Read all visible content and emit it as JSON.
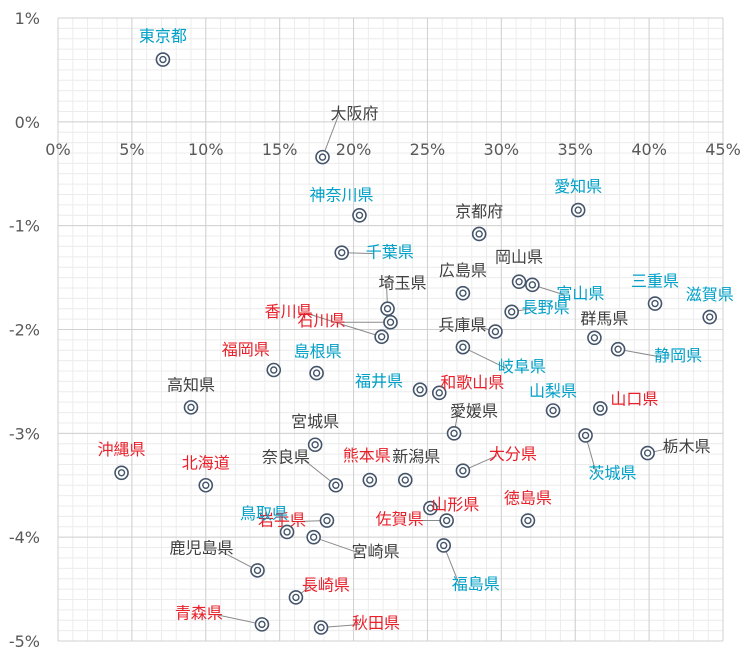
{
  "chart_data": {
    "type": "scatter",
    "title": "",
    "xlabel": "",
    "ylabel": "",
    "xlim": [
      0,
      0.45
    ],
    "ylim": [
      -0.05,
      0.01
    ],
    "x_ticks": [
      {
        "value": 0.0,
        "label": "0%"
      },
      {
        "value": 0.05,
        "label": "5%"
      },
      {
        "value": 0.1,
        "label": "10%"
      },
      {
        "value": 0.15,
        "label": "15%"
      },
      {
        "value": 0.2,
        "label": "20%"
      },
      {
        "value": 0.25,
        "label": "25%"
      },
      {
        "value": 0.3,
        "label": "30%"
      },
      {
        "value": 0.35,
        "label": "35%"
      },
      {
        "value": 0.4,
        "label": "40%"
      },
      {
        "value": 0.45,
        "label": "45%"
      }
    ],
    "y_ticks": [
      {
        "value": 0.01,
        "label": "1%"
      },
      {
        "value": 0.0,
        "label": "0%"
      },
      {
        "value": -0.01,
        "label": "-1%"
      },
      {
        "value": -0.02,
        "label": "-2%"
      },
      {
        "value": -0.03,
        "label": "-3%"
      },
      {
        "value": -0.04,
        "label": "-4%"
      },
      {
        "value": -0.05,
        "label": "-5%"
      }
    ],
    "grid": true,
    "marker_color": "#44546a",
    "label_colors": {
      "cyan": "#00a0c8",
      "red": "#e8202a",
      "dark": "#404040"
    },
    "points": [
      {
        "name": "東京都",
        "x": 0.071,
        "y": 0.006,
        "color": "cyan"
      },
      {
        "name": "大阪府",
        "x": 0.179,
        "y": -0.0034,
        "color": "dark"
      },
      {
        "name": "愛知県",
        "x": 0.352,
        "y": -0.0085,
        "color": "cyan"
      },
      {
        "name": "神奈川県",
        "x": 0.204,
        "y": -0.009,
        "color": "cyan"
      },
      {
        "name": "京都府",
        "x": 0.285,
        "y": -0.0108,
        "color": "dark"
      },
      {
        "name": "千葉県",
        "x": 0.192,
        "y": -0.0126,
        "color": "cyan"
      },
      {
        "name": "岡山県",
        "x": 0.312,
        "y": -0.0154,
        "color": "dark"
      },
      {
        "name": "富山県",
        "x": 0.321,
        "y": -0.0157,
        "color": "cyan"
      },
      {
        "name": "三重県",
        "x": 0.404,
        "y": -0.0175,
        "color": "cyan"
      },
      {
        "name": "広島県",
        "x": 0.274,
        "y": -0.0165,
        "color": "dark"
      },
      {
        "name": "長野県",
        "x": 0.307,
        "y": -0.0183,
        "color": "cyan"
      },
      {
        "name": "滋賀県",
        "x": 0.441,
        "y": -0.0188,
        "color": "cyan"
      },
      {
        "name": "埼玉県",
        "x": 0.223,
        "y": -0.018,
        "color": "dark"
      },
      {
        "name": "石川県",
        "x": 0.225,
        "y": -0.0193,
        "color": "red"
      },
      {
        "name": "香川県",
        "x": 0.219,
        "y": -0.0207,
        "color": "red"
      },
      {
        "name": "兵庫県",
        "x": 0.296,
        "y": -0.0202,
        "color": "dark"
      },
      {
        "name": "群馬県",
        "x": 0.363,
        "y": -0.0208,
        "color": "dark"
      },
      {
        "name": "静岡県",
        "x": 0.379,
        "y": -0.0219,
        "color": "cyan"
      },
      {
        "name": "岐阜県",
        "x": 0.274,
        "y": -0.0217,
        "color": "cyan"
      },
      {
        "name": "福岡県",
        "x": 0.146,
        "y": -0.0239,
        "color": "red"
      },
      {
        "name": "島根県",
        "x": 0.175,
        "y": -0.0242,
        "color": "cyan"
      },
      {
        "name": "高知県",
        "x": 0.09,
        "y": -0.0275,
        "color": "dark"
      },
      {
        "name": "福井県",
        "x": 0.245,
        "y": -0.0258,
        "color": "cyan"
      },
      {
        "name": "和歌山県",
        "x": 0.258,
        "y": -0.0261,
        "color": "red"
      },
      {
        "name": "山梨県",
        "x": 0.335,
        "y": -0.0278,
        "color": "cyan"
      },
      {
        "name": "山口県",
        "x": 0.367,
        "y": -0.0276,
        "color": "red"
      },
      {
        "name": "愛媛県",
        "x": 0.268,
        "y": -0.03,
        "color": "dark"
      },
      {
        "name": "沖縄県",
        "x": 0.043,
        "y": -0.0338,
        "color": "red"
      },
      {
        "name": "宮城県",
        "x": 0.174,
        "y": -0.0311,
        "color": "dark"
      },
      {
        "name": "茨城県",
        "x": 0.357,
        "y": -0.0302,
        "color": "cyan"
      },
      {
        "name": "栃木県",
        "x": 0.399,
        "y": -0.0319,
        "color": "dark"
      },
      {
        "name": "北海道",
        "x": 0.1,
        "y": -0.035,
        "color": "red"
      },
      {
        "name": "奈良県",
        "x": 0.188,
        "y": -0.035,
        "color": "dark"
      },
      {
        "name": "熊本県",
        "x": 0.211,
        "y": -0.0345,
        "color": "red"
      },
      {
        "name": "新潟県",
        "x": 0.235,
        "y": -0.0345,
        "color": "dark"
      },
      {
        "name": "大分県",
        "x": 0.274,
        "y": -0.0336,
        "color": "red"
      },
      {
        "name": "岩手県",
        "x": 0.182,
        "y": -0.0384,
        "color": "red"
      },
      {
        "name": "山形県",
        "x": 0.252,
        "y": -0.0372,
        "color": "red"
      },
      {
        "name": "徳島県",
        "x": 0.318,
        "y": -0.0384,
        "color": "red"
      },
      {
        "name": "佐賀県",
        "x": 0.263,
        "y": -0.0384,
        "color": "red"
      },
      {
        "name": "鳥取県",
        "x": 0.155,
        "y": -0.0395,
        "color": "cyan"
      },
      {
        "name": "宮崎県",
        "x": 0.173,
        "y": -0.04,
        "color": "dark"
      },
      {
        "name": "福島県",
        "x": 0.261,
        "y": -0.0408,
        "color": "cyan"
      },
      {
        "name": "鹿児島県",
        "x": 0.135,
        "y": -0.0432,
        "color": "dark"
      },
      {
        "name": "長崎県",
        "x": 0.161,
        "y": -0.0458,
        "color": "red"
      },
      {
        "name": "青森県",
        "x": 0.138,
        "y": -0.0484,
        "color": "red"
      },
      {
        "name": "秋田県",
        "x": 0.178,
        "y": -0.0487,
        "color": "red"
      }
    ]
  }
}
